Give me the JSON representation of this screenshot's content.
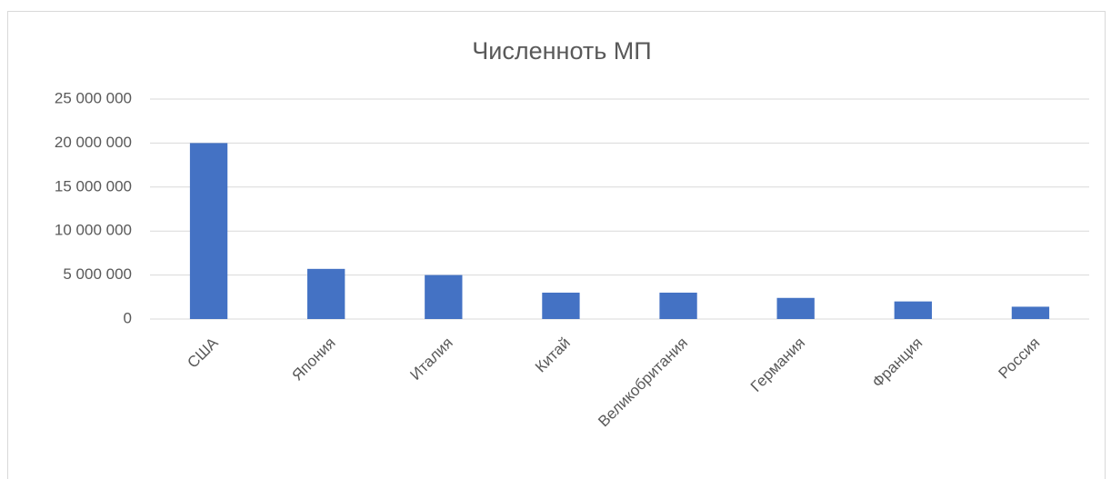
{
  "chart_data": {
    "type": "bar",
    "title": "Численноть МП",
    "categories": [
      "США",
      "Япония",
      "Италия",
      "Китай",
      "Великобритания",
      "Германия",
      "Франция",
      "Россия"
    ],
    "values": [
      20000000,
      5700000,
      5000000,
      3000000,
      3000000,
      2400000,
      2000000,
      1400000
    ],
    "color": "#4472c4",
    "ylim": [
      0,
      25000000
    ],
    "yticks": [
      0,
      {
        "value": 5000000,
        "label": "5 000 000"
      },
      {
        "value": 10000000,
        "label": "10 000 000"
      },
      {
        "value": 15000000,
        "label": "15 000 000"
      },
      {
        "value": 20000000,
        "label": "20 000 000"
      },
      {
        "value": 25000000,
        "label": "25 000 000"
      }
    ],
    "grid": true
  }
}
